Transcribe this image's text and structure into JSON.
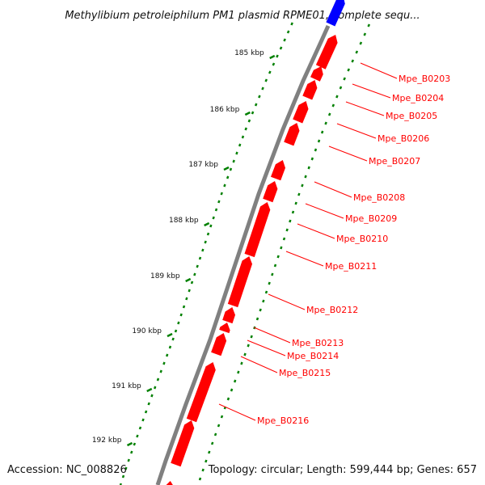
{
  "title": "Methylibium petroleiphilum PM1 plasmid RPME01, complete sequ...",
  "footer": {
    "accession": "Accession: NC_008826",
    "stats": "Topology: circular; Length: 599,444 bp; Genes: 657"
  },
  "colors": {
    "gene": "#ff0000",
    "gene_other_strand": "#0000ff",
    "label_line": "#ff0000",
    "backbone": "#808080",
    "dots": "#008000"
  },
  "ticks": [
    {
      "label": "185 kbp"
    },
    {
      "label": "186 kbp"
    },
    {
      "label": "187 kbp"
    },
    {
      "label": "188 kbp"
    },
    {
      "label": "189 kbp"
    },
    {
      "label": "190 kbp"
    },
    {
      "label": "191 kbp"
    },
    {
      "label": "192 kbp"
    }
  ],
  "genes": [
    {
      "label": "Mpe_B0203"
    },
    {
      "label": "Mpe_B0204"
    },
    {
      "label": "Mpe_B0205"
    },
    {
      "label": "Mpe_B0206"
    },
    {
      "label": "Mpe_B0207"
    },
    {
      "label": "Mpe_B0208"
    },
    {
      "label": "Mpe_B0209"
    },
    {
      "label": "Mpe_B0210"
    },
    {
      "label": "Mpe_B0211"
    },
    {
      "label": "Mpe_B0212"
    },
    {
      "label": "Mpe_B0213"
    },
    {
      "label": "Mpe_B0214"
    },
    {
      "label": "Mpe_B0215"
    },
    {
      "label": "Mpe_B0216"
    }
  ]
}
